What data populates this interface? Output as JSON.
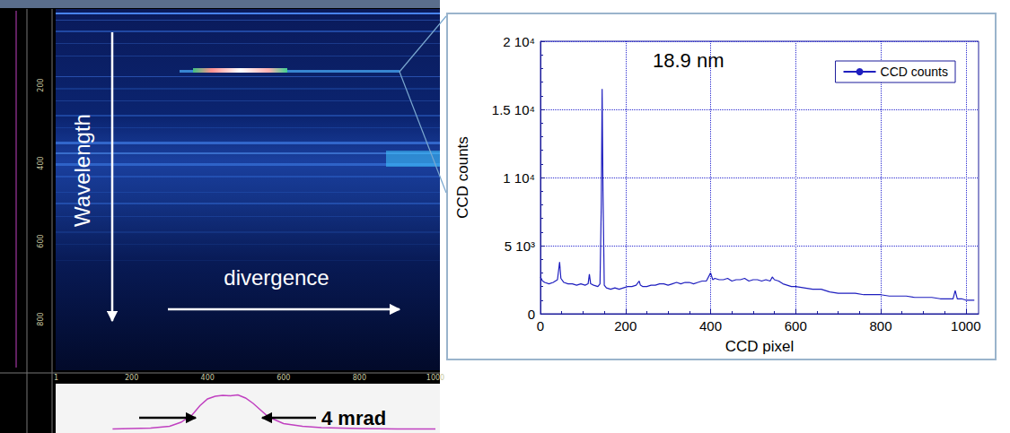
{
  "image_panel": {
    "labels": {
      "vertical": "Wavelength",
      "horizontal": "divergence",
      "width": "4 mrad"
    },
    "vertical_ticks": [
      200,
      400,
      600,
      800
    ],
    "horizontal_ticks": [
      1,
      200,
      400,
      600,
      800,
      1000
    ],
    "divergence_profile": {
      "x": [
        150,
        200,
        250,
        300,
        330,
        360,
        380,
        400,
        420,
        440,
        460,
        480,
        500,
        520,
        540,
        560,
        600,
        650,
        700,
        800,
        900,
        1000
      ],
      "values": [
        300,
        400,
        500,
        900,
        1800,
        3500,
        5500,
        7000,
        7600,
        7800,
        7700,
        7900,
        7200,
        6000,
        4500,
        3000,
        1500,
        900,
        600,
        400,
        300,
        300
      ],
      "ylim": [
        0,
        10000
      ]
    }
  },
  "chart_data": {
    "type": "line",
    "x_label": "CCD pixel",
    "y_label": "CCD counts",
    "annotation": "18.9 nm",
    "x": [
      0,
      5,
      10,
      20,
      30,
      40,
      45,
      48,
      55,
      65,
      75,
      85,
      95,
      105,
      112,
      115,
      118,
      125,
      135,
      140,
      143,
      145,
      147,
      150,
      155,
      165,
      175,
      185,
      195,
      205,
      215,
      225,
      232,
      235,
      240,
      250,
      260,
      270,
      280,
      290,
      300,
      310,
      320,
      330,
      340,
      350,
      360,
      370,
      380,
      390,
      400,
      405,
      410,
      420,
      430,
      440,
      450,
      460,
      470,
      480,
      490,
      500,
      510,
      520,
      530,
      540,
      545,
      550,
      560,
      570,
      580,
      590,
      600,
      620,
      640,
      660,
      680,
      700,
      720,
      740,
      760,
      780,
      800,
      820,
      840,
      860,
      880,
      900,
      920,
      940,
      960,
      970,
      975,
      980,
      990,
      1000,
      1010,
      1020
    ],
    "series": [
      {
        "name": "CCD counts",
        "color": "#1f1fbf",
        "values": [
          2700,
          2400,
          2300,
          2200,
          2300,
          2500,
          3800,
          2600,
          2300,
          2200,
          2200,
          2100,
          2200,
          2100,
          2200,
          2900,
          2200,
          2100,
          2000,
          2200,
          8000,
          16500,
          9000,
          2100,
          1900,
          1800,
          1900,
          1800,
          1900,
          2000,
          2000,
          2100,
          2400,
          2100,
          2000,
          2000,
          2100,
          2100,
          2200,
          2200,
          2100,
          2200,
          2300,
          2200,
          2300,
          2300,
          2200,
          2300,
          2400,
          2400,
          3000,
          2500,
          2600,
          2500,
          2500,
          2600,
          2400,
          2500,
          2500,
          2600,
          2400,
          2500,
          2500,
          2400,
          2500,
          2400,
          2700,
          2500,
          2400,
          2200,
          2100,
          2000,
          2000,
          1900,
          1800,
          1800,
          1600,
          1500,
          1500,
          1500,
          1400,
          1400,
          1400,
          1300,
          1300,
          1300,
          1200,
          1200,
          1200,
          1100,
          1100,
          1100,
          1700,
          1100,
          1100,
          1000,
          1000,
          1000
        ]
      }
    ],
    "xlim": [
      0,
      1030
    ],
    "xticks": [
      0,
      200,
      400,
      600,
      800,
      1000
    ],
    "ylim": [
      0,
      20000
    ],
    "yticks": [
      0,
      {
        "value": 5000,
        "label": "5 10³"
      },
      {
        "value": 10000,
        "label": "1 10⁴"
      },
      {
        "value": 15000,
        "label": "1.5 10⁴"
      },
      {
        "value": 20000,
        "label": "2 10⁴"
      }
    ],
    "grid": true,
    "legend": "upper right"
  }
}
